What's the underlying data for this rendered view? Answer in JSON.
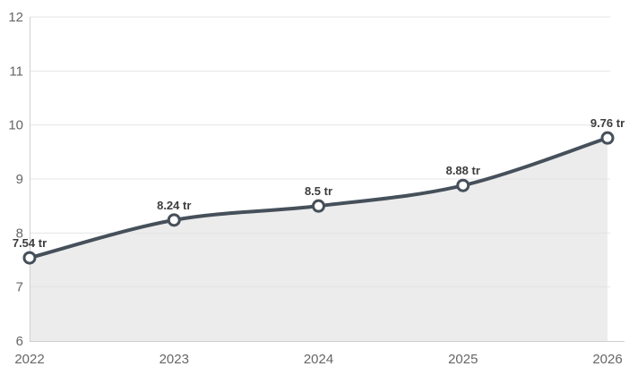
{
  "chart_style": {
    "background": "#ffffff",
    "line_color": "#46505b",
    "area_fill": "#ececec",
    "grid_color": "#e4e4e4",
    "axis_color": "#cfcfcf",
    "tick_label_color": "#666666",
    "data_label_color": "#3d3d3d",
    "marker_fill": "#ffffff"
  },
  "chart_data": {
    "type": "area",
    "title": "",
    "categories": [
      "2022",
      "2023",
      "2024",
      "2025",
      "2026"
    ],
    "values": [
      7.54,
      8.24,
      8.5,
      8.88,
      9.76
    ],
    "point_labels": [
      "7.54 tr",
      "8.24 tr",
      "8.5 tr",
      "8.88 tr",
      "9.76 tr"
    ],
    "xlabel": "",
    "ylabel": "",
    "ylim": [
      6,
      12
    ],
    "y_ticks": [
      6,
      7,
      8,
      9,
      10,
      11,
      12
    ],
    "grid": "horizontal",
    "legend": "none"
  }
}
